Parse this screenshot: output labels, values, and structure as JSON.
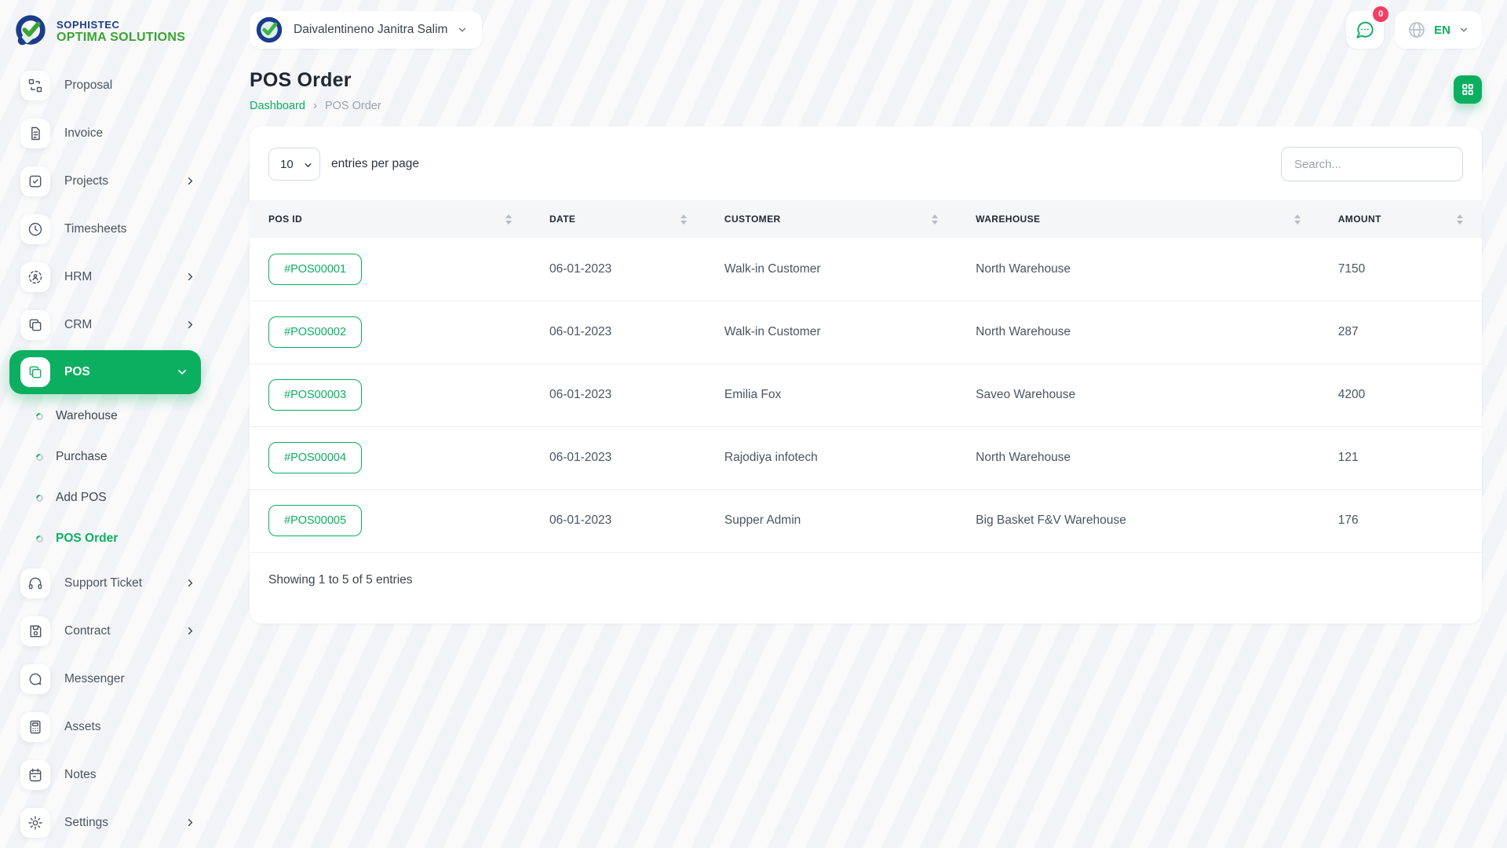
{
  "brand": {
    "line1": "SOPHISTEC",
    "line2": "OPTIMA SOLUTIONS",
    "logo_icon": "check-circle-logo"
  },
  "sidebar": {
    "items": [
      {
        "label": "Proposal",
        "icon": "proposal-icon",
        "chevron": false
      },
      {
        "label": "Invoice",
        "icon": "invoice-icon",
        "chevron": false
      },
      {
        "label": "Projects",
        "icon": "projects-icon",
        "chevron": true
      },
      {
        "label": "Timesheets",
        "icon": "timesheets-icon",
        "chevron": false
      },
      {
        "label": "HRM",
        "icon": "hrm-icon",
        "chevron": true
      },
      {
        "label": "CRM",
        "icon": "crm-icon",
        "chevron": true
      },
      {
        "label": "POS",
        "icon": "pos-icon",
        "chevron": true,
        "active": true,
        "expanded": true,
        "children": [
          {
            "label": "Warehouse",
            "active": false
          },
          {
            "label": "Purchase",
            "active": false
          },
          {
            "label": "Add POS",
            "active": false
          },
          {
            "label": "POS Order",
            "active": true
          }
        ]
      },
      {
        "label": "Support Ticket",
        "icon": "support-ticket-icon",
        "chevron": true
      },
      {
        "label": "Contract",
        "icon": "contract-icon",
        "chevron": true
      },
      {
        "label": "Messenger",
        "icon": "messenger-icon",
        "chevron": false
      },
      {
        "label": "Assets",
        "icon": "assets-icon",
        "chevron": false
      },
      {
        "label": "Notes",
        "icon": "notes-icon",
        "chevron": false
      },
      {
        "label": "Settings",
        "icon": "settings-icon",
        "chevron": true
      }
    ]
  },
  "header": {
    "user_name": "Daivalentineno Janitra Salim",
    "chat_badge": "0",
    "language": "EN"
  },
  "page": {
    "title": "POS Order",
    "breadcrumb": {
      "root": "Dashboard",
      "current": "POS Order"
    }
  },
  "table_card": {
    "entries_per_page": "10",
    "entries_label": "entries per page",
    "search_placeholder": "Search...",
    "columns": [
      "POS ID",
      "DATE",
      "CUSTOMER",
      "WAREHOUSE",
      "AMOUNT"
    ],
    "rows": [
      {
        "pos_id": "#POS00001",
        "date": "06-01-2023",
        "customer": "Walk-in Customer",
        "warehouse": "North Warehouse",
        "amount": "7150"
      },
      {
        "pos_id": "#POS00002",
        "date": "06-01-2023",
        "customer": "Walk-in Customer",
        "warehouse": "North Warehouse",
        "amount": "287"
      },
      {
        "pos_id": "#POS00003",
        "date": "06-01-2023",
        "customer": "Emilia Fox",
        "warehouse": "Saveo Warehouse",
        "amount": "4200"
      },
      {
        "pos_id": "#POS00004",
        "date": "06-01-2023",
        "customer": "Rajodiya infotech",
        "warehouse": "North Warehouse",
        "amount": "121"
      },
      {
        "pos_id": "#POS00005",
        "date": "06-01-2023",
        "customer": "Supper Admin",
        "warehouse": "Big Basket F&V Warehouse",
        "amount": "176"
      }
    ],
    "footer_text": "Showing 1 to 5 of 5 entries"
  },
  "colors": {
    "primary_green": "#0CAF60",
    "badge_pink": "#F43E63",
    "brand_navy": "#1b3c8c",
    "brand_green": "#3aa335"
  }
}
